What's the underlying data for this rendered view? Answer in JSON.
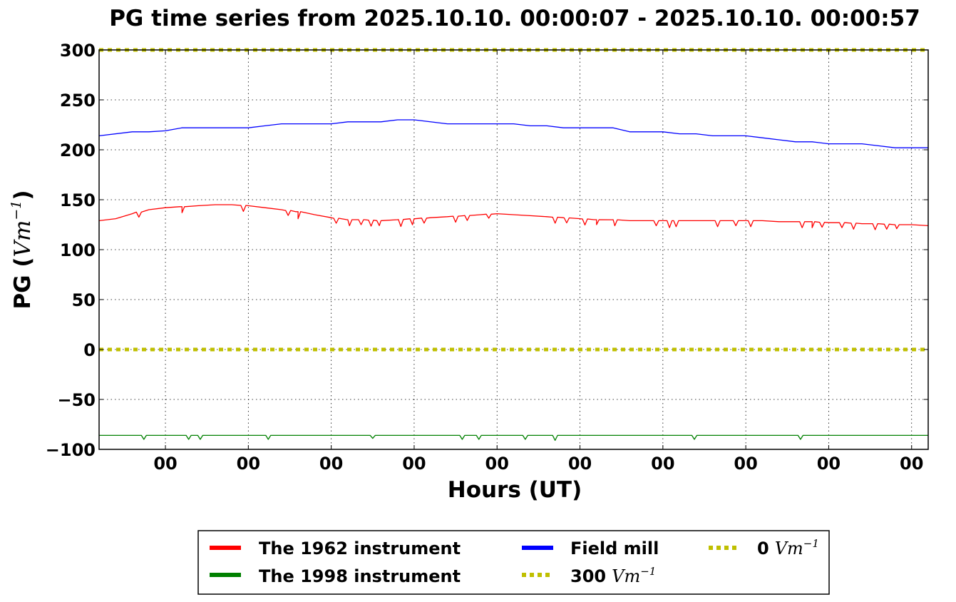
{
  "chart_data": {
    "type": "line",
    "title": "PG time series from 2025.10.10. 00:00:07 - 2025.10.10. 00:00:57",
    "xlabel": "Hours (UT)",
    "ylabel": {
      "prefix": "PG (",
      "unit_base": "Vm",
      "unit_exp": "−1",
      "suffix": ")"
    },
    "ylim": [
      -100,
      300
    ],
    "xlim": [
      0,
      50
    ],
    "yticks": [
      300,
      250,
      200,
      150,
      100,
      50,
      0,
      -50,
      -100
    ],
    "ytick_labels": [
      "300",
      "250",
      "200",
      "150",
      "100",
      "50",
      "0",
      "−50",
      "−100"
    ],
    "xticks": [
      4,
      9,
      14,
      19,
      24,
      29,
      34,
      39,
      44,
      49
    ],
    "xtick_labels": [
      "00",
      "00",
      "00",
      "00",
      "00",
      "00",
      "00",
      "00",
      "00",
      "00"
    ],
    "grid": true,
    "legend_position": "bottom-center",
    "series": [
      {
        "name": "The 1962 instrument",
        "color": "#ff0000",
        "style": "solid",
        "x": [
          0,
          1,
          2,
          3,
          4,
          5,
          6,
          7,
          8,
          9,
          10,
          11,
          12,
          13,
          14,
          15,
          16,
          17,
          18,
          19,
          20,
          21,
          22,
          23,
          24,
          25,
          26,
          27,
          28,
          29,
          30,
          31,
          32,
          33,
          34,
          35,
          36,
          37,
          38,
          39,
          40,
          41,
          42,
          43,
          44,
          45,
          46,
          47,
          48,
          49,
          50
        ],
        "values": [
          129,
          131,
          136,
          140,
          142,
          143,
          144,
          145,
          145,
          144,
          142,
          140,
          138,
          135,
          132,
          130,
          130,
          129,
          130,
          131,
          132,
          133,
          134,
          135,
          136,
          135,
          134,
          133,
          132,
          131,
          130,
          130,
          129,
          129,
          129,
          129,
          129,
          129,
          129,
          129,
          129,
          128,
          128,
          128,
          127,
          127,
          126,
          126,
          125,
          125,
          124
        ]
      },
      {
        "name": "The 1998 instrument",
        "color": "#008000",
        "style": "solid",
        "x": [
          0,
          50
        ],
        "values": [
          -86,
          -86
        ]
      },
      {
        "name": "Field mill",
        "color": "#0000ff",
        "style": "solid",
        "x": [
          0,
          2,
          3,
          4,
          5,
          6,
          9,
          10,
          11,
          14,
          15,
          17,
          18,
          19,
          21,
          25,
          26,
          27,
          28,
          31,
          32,
          34,
          35,
          36,
          37,
          38,
          39,
          40,
          41,
          42,
          43,
          44,
          45,
          46,
          47,
          48,
          49,
          50
        ],
        "values": [
          214,
          218,
          218,
          219,
          222,
          222,
          222,
          224,
          226,
          226,
          228,
          228,
          230,
          230,
          226,
          226,
          224,
          224,
          222,
          222,
          218,
          218,
          216,
          216,
          214,
          214,
          214,
          212,
          210,
          208,
          208,
          206,
          206,
          206,
          204,
          202,
          202,
          202
        ]
      },
      {
        "name": "300 Vm⁻¹",
        "color": "#bfbf00",
        "style": "dotted",
        "x": [
          0,
          50
        ],
        "values": [
          300,
          300
        ]
      },
      {
        "name": "0 Vm⁻¹",
        "color": "#bfbf00",
        "style": "dotted",
        "x": [
          0,
          50
        ],
        "values": [
          0,
          0
        ]
      }
    ],
    "spikes": {
      "1962": {
        "x": [
          2.4,
          5.0,
          8.7,
          11.4,
          12.0,
          14.3,
          15.1,
          15.8,
          16.4,
          16.9,
          18.2,
          18.9,
          19.6,
          21.5,
          22.2,
          23.5,
          27.5,
          28.2,
          29.3,
          30.0,
          31.1,
          33.6,
          34.4,
          34.8,
          37.3,
          38.4,
          39.3,
          42.4,
          43.0,
          43.6,
          44.8,
          45.5,
          46.8,
          47.5,
          48.1
        ],
        "depth": [
          5,
          6,
          6,
          5,
          7,
          5,
          6,
          5,
          6,
          5,
          7,
          6,
          5,
          6,
          5,
          4,
          6,
          5,
          6,
          5,
          6,
          5,
          7,
          6,
          6,
          5,
          6,
          6,
          6,
          5,
          5,
          6,
          6,
          5,
          4
        ]
      },
      "1998": {
        "x": [
          2.7,
          5.4,
          6.1,
          10.2,
          16.5,
          21.9,
          22.9,
          25.7,
          27.5,
          35.9,
          42.3
        ],
        "depth": [
          4,
          4,
          4,
          4,
          3,
          4,
          4,
          4,
          5,
          4,
          4
        ]
      }
    }
  },
  "legend": {
    "entries": [
      {
        "label": "The 1962 instrument",
        "color": "#ff0000",
        "style": "solid"
      },
      {
        "label": "The 1998 instrument",
        "color": "#008000",
        "style": "solid"
      },
      {
        "label": "Field mill",
        "color": "#0000ff",
        "style": "solid"
      },
      {
        "label_value": "300",
        "unit_base": "Vm",
        "unit_exp": "−1",
        "color": "#bfbf00",
        "style": "dotted"
      },
      {
        "label_value": "0",
        "unit_base": "Vm",
        "unit_exp": "−1",
        "color": "#bfbf00",
        "style": "dotted"
      }
    ]
  }
}
